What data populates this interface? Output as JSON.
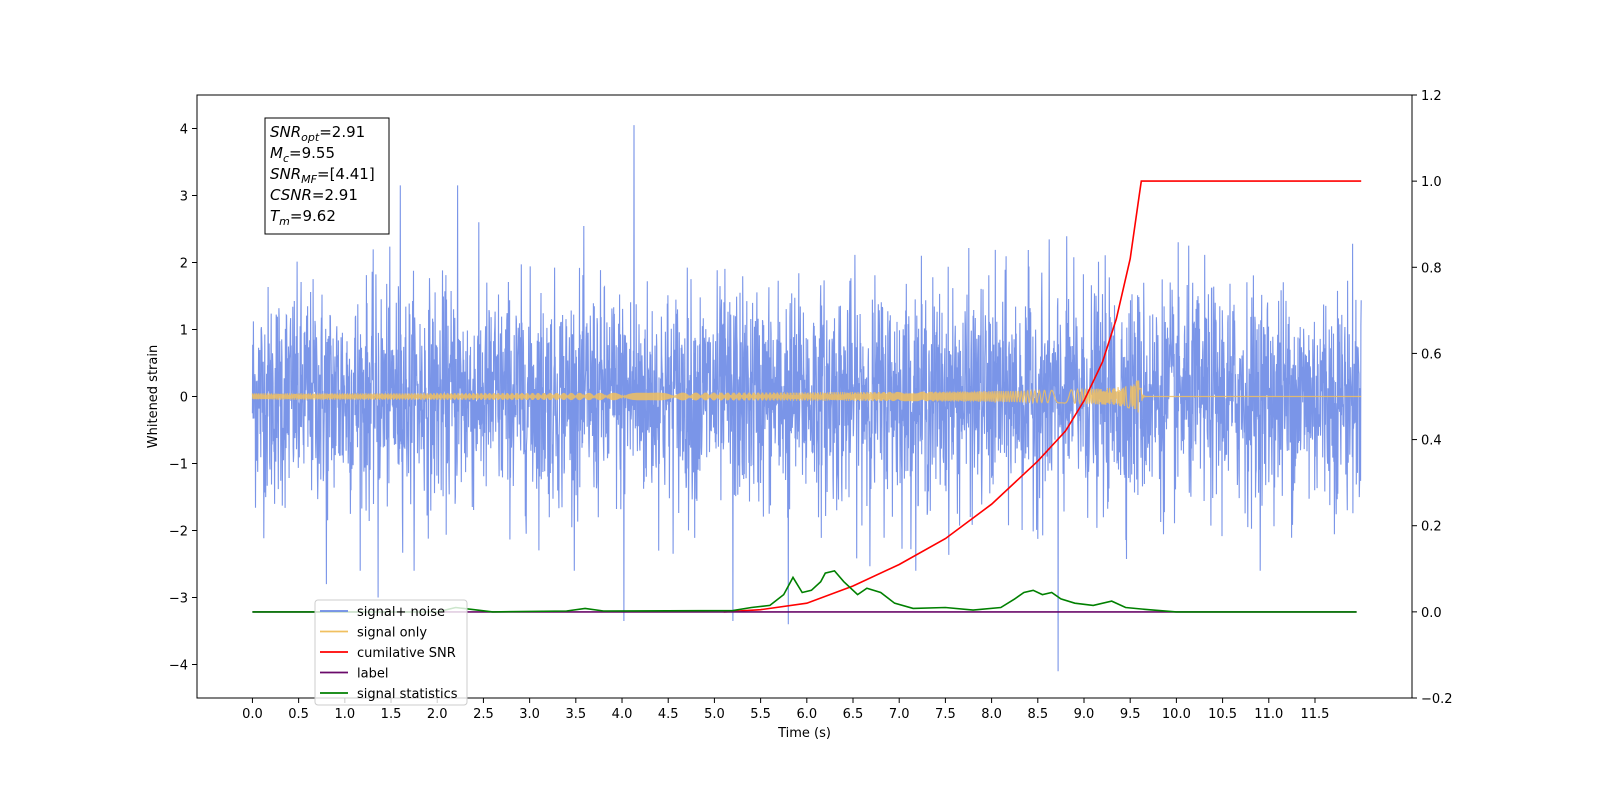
{
  "chart_data": {
    "type": "line",
    "title": "",
    "xlabel": "Time (s)",
    "ylabel": "Whitened strain",
    "xlim": [
      -0.6,
      12.55
    ],
    "ylim": [
      -4.5,
      4.5
    ],
    "y2lim": [
      -0.2,
      1.2
    ],
    "grid": false,
    "legend_position": "lower-left",
    "x_ticks": [
      "0.0",
      "0.5",
      "1.0",
      "1.5",
      "2.0",
      "2.5",
      "3.0",
      "3.5",
      "4.0",
      "4.5",
      "5.0",
      "5.5",
      "6.0",
      "6.5",
      "7.0",
      "7.5",
      "8.0",
      "8.5",
      "9.0",
      "9.5",
      "10.0",
      "10.5",
      "11.0",
      "11.5"
    ],
    "y_ticks": [
      "−4",
      "−3",
      "−2",
      "−1",
      "0",
      "1",
      "2",
      "3",
      "4"
    ],
    "y2_ticks": [
      "−0.2",
      "0.0",
      "0.2",
      "0.4",
      "0.6",
      "0.8",
      "1.0",
      "1.2"
    ],
    "annotation": [
      {
        "name": "SNR",
        "sub": "opt",
        "value": "=2.91"
      },
      {
        "name": "M",
        "sub": "c",
        "value": "=9.55"
      },
      {
        "name": "SNR",
        "sub": "MF",
        "value": "=[4.41]"
      },
      {
        "name": "CSNR",
        "sub": "",
        "value": "=2.91"
      },
      {
        "name": "T",
        "sub": "m",
        "value": "=9.62"
      }
    ],
    "series": [
      {
        "name": "signal+ noise",
        "color": "#6b8ae6",
        "axis": "left",
        "kind": "noise",
        "x_range": [
          0.0,
          12.0
        ],
        "amplitude_typical": 1.3,
        "outliers": [
          [
            4.13,
            4.05
          ],
          [
            0.8,
            -2.8
          ],
          [
            1.36,
            -3.0
          ],
          [
            8.72,
            -4.1
          ],
          [
            4.02,
            -3.35
          ],
          [
            5.2,
            -3.35
          ],
          [
            5.8,
            -3.4
          ],
          [
            1.6,
            3.15
          ],
          [
            2.22,
            3.15
          ]
        ]
      },
      {
        "name": "signal only",
        "color": "#f0c060",
        "axis": "left",
        "kind": "chirp",
        "merger_time": 9.62,
        "peak_amplitude": 0.3
      },
      {
        "name": "cumilative SNR",
        "color": "#ff0000",
        "axis": "right",
        "points": [
          [
            5.1,
            0.0
          ],
          [
            5.5,
            0.005
          ],
          [
            6.0,
            0.02
          ],
          [
            6.5,
            0.06
          ],
          [
            7.0,
            0.11
          ],
          [
            7.5,
            0.17
          ],
          [
            8.0,
            0.25
          ],
          [
            8.5,
            0.35
          ],
          [
            8.8,
            0.42
          ],
          [
            9.0,
            0.49
          ],
          [
            9.2,
            0.58
          ],
          [
            9.35,
            0.68
          ],
          [
            9.5,
            0.82
          ],
          [
            9.6,
            0.97
          ],
          [
            9.62,
            1.0
          ],
          [
            12.0,
            1.0
          ]
        ]
      },
      {
        "name": "label",
        "color": "#6a0a6a",
        "axis": "right",
        "points": [
          [
            0.0,
            0.0
          ],
          [
            11.95,
            0.0
          ]
        ]
      },
      {
        "name": "signal statistics",
        "color": "#008000",
        "axis": "right",
        "points": [
          [
            0.0,
            0.0
          ],
          [
            2.0,
            0.0
          ],
          [
            2.2,
            0.01
          ],
          [
            2.4,
            0.005
          ],
          [
            2.6,
            0.0
          ],
          [
            3.4,
            0.002
          ],
          [
            3.6,
            0.008
          ],
          [
            3.8,
            0.002
          ],
          [
            5.2,
            0.003
          ],
          [
            5.4,
            0.01
          ],
          [
            5.6,
            0.015
          ],
          [
            5.75,
            0.04
          ],
          [
            5.85,
            0.08
          ],
          [
            5.95,
            0.045
          ],
          [
            6.05,
            0.05
          ],
          [
            6.15,
            0.07
          ],
          [
            6.2,
            0.09
          ],
          [
            6.3,
            0.095
          ],
          [
            6.4,
            0.07
          ],
          [
            6.55,
            0.04
          ],
          [
            6.65,
            0.055
          ],
          [
            6.8,
            0.045
          ],
          [
            6.95,
            0.02
          ],
          [
            7.15,
            0.008
          ],
          [
            7.5,
            0.01
          ],
          [
            7.8,
            0.004
          ],
          [
            8.1,
            0.01
          ],
          [
            8.25,
            0.03
          ],
          [
            8.35,
            0.045
          ],
          [
            8.45,
            0.05
          ],
          [
            8.55,
            0.04
          ],
          [
            8.65,
            0.045
          ],
          [
            8.75,
            0.03
          ],
          [
            8.9,
            0.02
          ],
          [
            9.1,
            0.015
          ],
          [
            9.3,
            0.025
          ],
          [
            9.45,
            0.01
          ],
          [
            9.7,
            0.005
          ],
          [
            10.0,
            0.0
          ],
          [
            11.95,
            0.0
          ]
        ]
      }
    ],
    "legend": [
      "signal+ noise",
      "signal only",
      "cumilative SNR",
      "label",
      "signal statistics"
    ]
  }
}
